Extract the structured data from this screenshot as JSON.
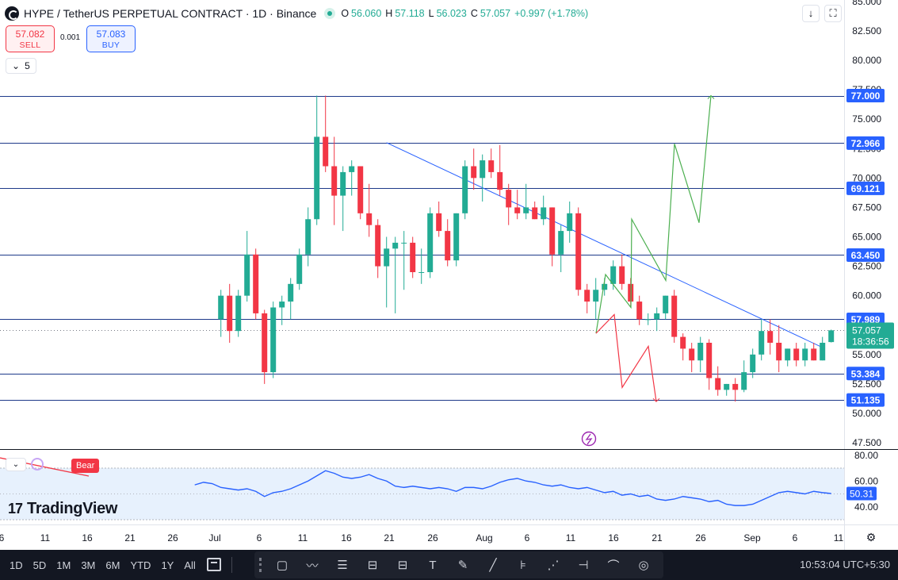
{
  "header": {
    "title": "HYPE / TetherUS PERPETUAL CONTRACT · 1D · Binance",
    "ohlc": [
      {
        "key": "O",
        "value": "56.060"
      },
      {
        "key": "H",
        "value": "57.118"
      },
      {
        "key": "L",
        "value": "56.023"
      },
      {
        "key": "C",
        "value": "57.057"
      },
      {
        "key": "",
        "value": "+0.997 (+1.78%)"
      }
    ]
  },
  "trade": {
    "sell_price": "57.082",
    "sell_label": "SELL",
    "spread": "0.001",
    "buy_price": "57.083",
    "buy_label": "BUY"
  },
  "interval_chip": "5",
  "indicator": {
    "bear_label": "Bear"
  },
  "brand": {
    "name": "TradingView",
    "mark": "17"
  },
  "bottom_bar": {
    "ranges": [
      "1D",
      "5D",
      "1M",
      "3M",
      "6M",
      "YTD",
      "1Y",
      "All"
    ],
    "clock": "10:53:04 UTC+5:30"
  },
  "icons": {
    "top_buttons": [
      "download-icon",
      "fullscreen-icon"
    ],
    "drawing_tools": [
      "cursor-cross-icon",
      "rectangle-icon",
      "path-icon",
      "fib-retracement-icon",
      "long-position-icon",
      "short-position-icon",
      "text-icon",
      "brush-icon",
      "ray-icon",
      "fib-channel-icon",
      "pitchfork-icon",
      "ruler-icon",
      "measure-icon",
      "eye-icon"
    ],
    "settings": "gear-icon",
    "lightning": "lightning-icon"
  },
  "colors": {
    "up": "#22ab94",
    "down": "#f23645",
    "line": "#2962ff",
    "forecast_up": "#4caf50",
    "forecast_down": "#f23645",
    "rsi": "#2962ff",
    "rsi_band": "#e7f1fd",
    "text": "#131722"
  },
  "chart_data": [
    {
      "type": "candlestick",
      "title": "HYPE / TetherUS PERPETUAL CONTRACT · 1D · Binance",
      "ylim": [
        47.5,
        85.0
      ],
      "y_ticks": [
        "47.500",
        "50.000",
        "52.500",
        "55.000",
        "57.500",
        "60.000",
        "62.500",
        "65.000",
        "67.500",
        "70.000",
        "72.500",
        "75.000",
        "77.500",
        "80.000",
        "82.500",
        "85.000"
      ],
      "x_ticks": [
        "6",
        "11",
        "16",
        "21",
        "26",
        "Jul",
        "6",
        "11",
        "16",
        "21",
        "26",
        "Aug",
        "6",
        "11",
        "16",
        "21",
        "26",
        "Sep",
        "6",
        "11"
      ],
      "grid": false,
      "candles": [
        {
          "o": 58.0,
          "h": 60.5,
          "l": 56.5,
          "c": 60.0
        },
        {
          "o": 60.0,
          "h": 61.0,
          "l": 56.0,
          "c": 57.0
        },
        {
          "o": 57.0,
          "h": 60.5,
          "l": 56.5,
          "c": 60.0
        },
        {
          "o": 60.0,
          "h": 65.5,
          "l": 59.5,
          "c": 63.5
        },
        {
          "o": 63.5,
          "h": 64.0,
          "l": 58.0,
          "c": 58.5
        },
        {
          "o": 58.5,
          "h": 58.8,
          "l": 52.5,
          "c": 53.5
        },
        {
          "o": 53.5,
          "h": 59.5,
          "l": 53.0,
          "c": 59.0
        },
        {
          "o": 59.0,
          "h": 60.0,
          "l": 57.5,
          "c": 59.5
        },
        {
          "o": 59.5,
          "h": 61.5,
          "l": 58.0,
          "c": 61.0
        },
        {
          "o": 61.0,
          "h": 64.0,
          "l": 60.5,
          "c": 63.5
        },
        {
          "o": 63.5,
          "h": 67.5,
          "l": 62.5,
          "c": 66.5
        },
        {
          "o": 66.5,
          "h": 77.0,
          "l": 66.0,
          "c": 73.5
        },
        {
          "o": 73.5,
          "h": 77.0,
          "l": 70.5,
          "c": 71.0
        },
        {
          "o": 71.0,
          "h": 73.5,
          "l": 66.0,
          "c": 68.5
        },
        {
          "o": 68.5,
          "h": 71.0,
          "l": 65.5,
          "c": 70.5
        },
        {
          "o": 70.5,
          "h": 71.5,
          "l": 68.5,
          "c": 71.0
        },
        {
          "o": 71.0,
          "h": 71.0,
          "l": 66.5,
          "c": 67.0
        },
        {
          "o": 67.0,
          "h": 69.5,
          "l": 65.0,
          "c": 66.0
        },
        {
          "o": 66.0,
          "h": 66.5,
          "l": 61.5,
          "c": 62.5
        },
        {
          "o": 62.5,
          "h": 65.0,
          "l": 59.0,
          "c": 64.0
        },
        {
          "o": 64.0,
          "h": 65.0,
          "l": 58.5,
          "c": 64.5
        },
        {
          "o": 64.5,
          "h": 65.5,
          "l": 60.5,
          "c": 64.5
        },
        {
          "o": 64.5,
          "h": 65.0,
          "l": 61.5,
          "c": 62.0
        },
        {
          "o": 62.0,
          "h": 64.0,
          "l": 61.0,
          "c": 62.0
        },
        {
          "o": 62.0,
          "h": 67.5,
          "l": 61.5,
          "c": 67.0
        },
        {
          "o": 67.0,
          "h": 68.0,
          "l": 65.0,
          "c": 65.5
        },
        {
          "o": 65.5,
          "h": 66.5,
          "l": 62.5,
          "c": 63.0
        },
        {
          "o": 63.0,
          "h": 67.0,
          "l": 62.5,
          "c": 67.0
        },
        {
          "o": 67.0,
          "h": 71.5,
          "l": 66.5,
          "c": 71.0
        },
        {
          "o": 71.0,
          "h": 72.5,
          "l": 69.0,
          "c": 70.0
        },
        {
          "o": 70.0,
          "h": 72.0,
          "l": 68.0,
          "c": 71.5
        },
        {
          "o": 71.5,
          "h": 72.5,
          "l": 70.0,
          "c": 70.5
        },
        {
          "o": 70.5,
          "h": 72.8,
          "l": 68.5,
          "c": 69.0
        },
        {
          "o": 69.0,
          "h": 69.5,
          "l": 66.0,
          "c": 67.5
        },
        {
          "o": 67.5,
          "h": 69.0,
          "l": 66.5,
          "c": 67.0
        },
        {
          "o": 67.0,
          "h": 69.5,
          "l": 66.5,
          "c": 67.5
        },
        {
          "o": 67.5,
          "h": 68.0,
          "l": 66.5,
          "c": 66.5
        },
        {
          "o": 66.5,
          "h": 68.5,
          "l": 66.0,
          "c": 67.5
        },
        {
          "o": 67.5,
          "h": 67.5,
          "l": 62.5,
          "c": 63.5
        },
        {
          "o": 63.5,
          "h": 66.0,
          "l": 62.0,
          "c": 65.5
        },
        {
          "o": 65.5,
          "h": 68.0,
          "l": 64.5,
          "c": 67.0
        },
        {
          "o": 67.0,
          "h": 67.5,
          "l": 60.0,
          "c": 60.5
        },
        {
          "o": 60.5,
          "h": 61.0,
          "l": 58.5,
          "c": 59.5
        },
        {
          "o": 59.5,
          "h": 61.5,
          "l": 58.0,
          "c": 60.5
        },
        {
          "o": 60.5,
          "h": 61.5,
          "l": 60.0,
          "c": 61.0
        },
        {
          "o": 61.0,
          "h": 63.0,
          "l": 60.5,
          "c": 62.5
        },
        {
          "o": 62.5,
          "h": 63.5,
          "l": 60.5,
          "c": 61.0
        },
        {
          "o": 61.0,
          "h": 61.5,
          "l": 59.0,
          "c": 59.5
        },
        {
          "o": 59.5,
          "h": 60.0,
          "l": 57.5,
          "c": 58.0
        },
        {
          "o": 58.0,
          "h": 58.5,
          "l": 57.5,
          "c": 58.0
        },
        {
          "o": 58.0,
          "h": 59.0,
          "l": 57.0,
          "c": 58.5
        },
        {
          "o": 58.5,
          "h": 60.0,
          "l": 58.0,
          "c": 60.0
        },
        {
          "o": 60.0,
          "h": 60.5,
          "l": 56.0,
          "c": 56.5
        },
        {
          "o": 56.5,
          "h": 56.8,
          "l": 54.5,
          "c": 55.5
        },
        {
          "o": 55.5,
          "h": 56.0,
          "l": 53.5,
          "c": 54.5
        },
        {
          "o": 54.5,
          "h": 56.5,
          "l": 53.5,
          "c": 56.0
        },
        {
          "o": 56.0,
          "h": 56.3,
          "l": 52.0,
          "c": 53.0
        },
        {
          "o": 53.0,
          "h": 54.0,
          "l": 51.5,
          "c": 52.0
        },
        {
          "o": 52.0,
          "h": 52.5,
          "l": 51.5,
          "c": 52.5
        },
        {
          "o": 52.5,
          "h": 53.0,
          "l": 51.0,
          "c": 52.0
        },
        {
          "o": 52.0,
          "h": 54.5,
          "l": 51.8,
          "c": 53.5
        },
        {
          "o": 53.5,
          "h": 55.5,
          "l": 53.0,
          "c": 55.0
        },
        {
          "o": 55.0,
          "h": 58.0,
          "l": 54.5,
          "c": 57.0
        },
        {
          "o": 57.0,
          "h": 58.0,
          "l": 55.0,
          "c": 56.0
        },
        {
          "o": 56.0,
          "h": 57.5,
          "l": 53.5,
          "c": 54.5
        },
        {
          "o": 54.5,
          "h": 55.5,
          "l": 54.0,
          "c": 55.5
        },
        {
          "o": 55.5,
          "h": 56.0,
          "l": 54.0,
          "c": 54.5
        },
        {
          "o": 54.5,
          "h": 56.0,
          "l": 54.0,
          "c": 55.5
        },
        {
          "o": 55.5,
          "h": 56.0,
          "l": 54.5,
          "c": 54.5
        },
        {
          "o": 54.5,
          "h": 56.5,
          "l": 54.5,
          "c": 56.0
        },
        {
          "o": 56.06,
          "h": 57.118,
          "l": 56.023,
          "c": 57.057
        }
      ],
      "levels": [
        {
          "value": 77.0,
          "label": "77.000"
        },
        {
          "value": 72.966,
          "label": "72.966"
        },
        {
          "value": 69.121,
          "label": "69.121"
        },
        {
          "value": 63.45,
          "label": "63.450"
        },
        {
          "value": 57.989,
          "label": "57.989"
        },
        {
          "value": 53.384,
          "label": "53.384"
        },
        {
          "value": 51.135,
          "label": "51.135"
        }
      ],
      "last_price": {
        "value": 57.057,
        "label": "57.057",
        "countdown": "18:36:56"
      },
      "trendline": {
        "from": {
          "candle": 45,
          "y": 73.0
        },
        "to": {
          "candle": 95,
          "y": 55.6
        }
      },
      "forecast_bull": [
        [
          0,
          56.8
        ],
        [
          1,
          61.8
        ],
        [
          2,
          59.0
        ],
        [
          3,
          66.5
        ],
        [
          4,
          61.3
        ],
        [
          5,
          72.9
        ],
        [
          6,
          66.2
        ],
        [
          7,
          77.0
        ]
      ],
      "forecast_bear": [
        [
          0,
          56.8
        ],
        [
          1,
          58.4
        ],
        [
          2,
          52.2
        ],
        [
          3,
          55.7
        ],
        [
          4,
          51.0
        ]
      ]
    },
    {
      "type": "line",
      "title": "",
      "ylim": [
        30.0,
        80.0
      ],
      "y_ticks": [
        "40.00",
        "60.00",
        "80.00"
      ],
      "last_value": {
        "value": 50.31,
        "label": "50.31"
      },
      "bands": [
        30.0,
        70.0
      ],
      "series": [
        {
          "values": [
            57,
            59,
            58,
            55,
            54,
            53,
            54,
            52,
            48,
            51,
            52,
            54,
            57,
            60,
            64,
            68,
            66,
            63,
            62,
            63,
            65,
            62,
            60,
            56,
            55,
            56,
            55,
            54,
            55,
            54,
            52,
            55,
            55,
            54,
            56,
            59,
            61,
            62,
            60,
            59,
            57,
            56,
            57,
            55,
            54,
            55,
            53,
            51,
            52,
            49,
            50,
            48,
            49,
            46,
            45,
            46,
            48,
            47,
            46,
            44,
            45,
            42,
            41,
            41,
            42,
            45,
            48,
            51,
            52,
            51,
            50,
            52,
            51,
            50.31
          ]
        }
      ]
    }
  ]
}
